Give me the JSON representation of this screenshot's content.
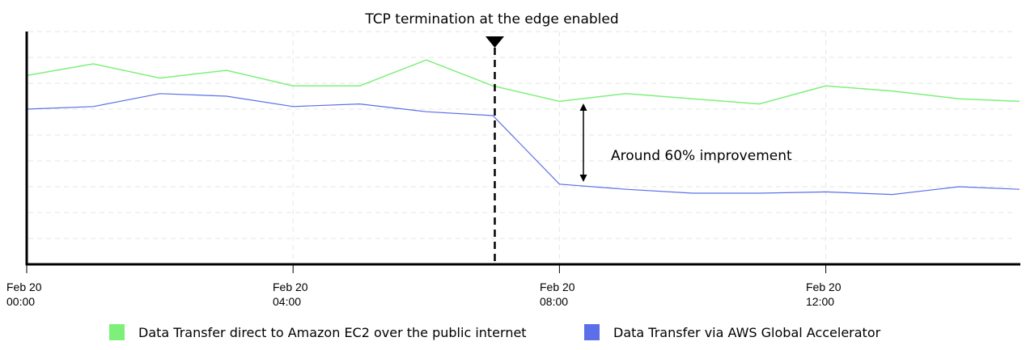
{
  "chart_data": {
    "type": "line",
    "title": "",
    "xlabel": "",
    "ylabel": "",
    "y_units": "relative (gridline = 1 unit; unlabeled axis)",
    "ylim": [
      0,
      9
    ],
    "grid": true,
    "legend_position": "bottom",
    "x_ticks": [
      {
        "hour": 0,
        "line1": "Feb 20",
        "line2": "00:00"
      },
      {
        "hour": 4,
        "line1": "Feb 20",
        "line2": "04:00"
      },
      {
        "hour": 8,
        "line1": "Feb 20",
        "line2": "08:00"
      },
      {
        "hour": 12,
        "line1": "Feb 20",
        "line2": "12:00"
      }
    ],
    "x": [
      0,
      1,
      2,
      3,
      4,
      5,
      6,
      7,
      8,
      9,
      10,
      11,
      12,
      13,
      14,
      15
    ],
    "series": [
      {
        "name": "Data Transfer direct to Amazon EC2 over the public internet",
        "color": "#7ef07a",
        "values": [
          7.3,
          7.75,
          7.2,
          7.5,
          6.9,
          6.9,
          7.9,
          6.9,
          6.3,
          6.6,
          6.4,
          6.2,
          6.9,
          6.7,
          6.4,
          6.3
        ]
      },
      {
        "name": "Data Transfer via AWS Global Accelerator",
        "color": "#5b6fe8",
        "values": [
          6.0,
          6.1,
          6.6,
          6.5,
          6.1,
          6.2,
          5.9,
          5.75,
          3.1,
          2.9,
          2.75,
          2.75,
          2.8,
          2.7,
          3.0,
          2.9
        ]
      }
    ],
    "annotations": [
      {
        "type": "vertical-dashed-marker",
        "x": 7,
        "text": "TCP termination at the edge enabled"
      },
      {
        "type": "double-arrow",
        "x": 8.35,
        "text": "Around 60% improvement"
      }
    ]
  },
  "annotations": {
    "marker_label": "TCP termination at the edge enabled",
    "improvement_label": "Around 60% improvement"
  },
  "legend": [
    {
      "label": "Data Transfer direct to Amazon EC2 over the public internet",
      "color": "#7ef07a"
    },
    {
      "label": "Data Transfer via AWS Global Accelerator",
      "color": "#5b6fe8"
    }
  ]
}
